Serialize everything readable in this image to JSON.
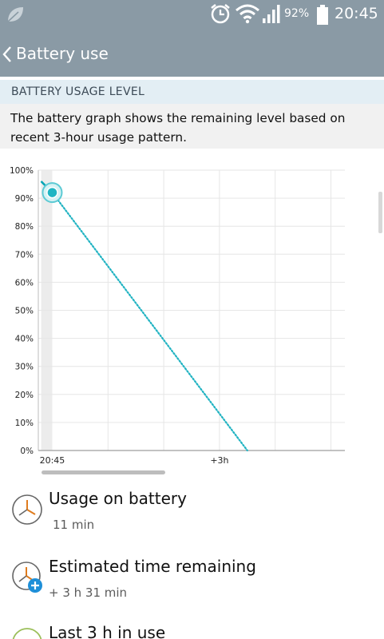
{
  "status_bar": {
    "icons": [
      "leaf-icon",
      "alarm-icon",
      "wifi-icon",
      "signal-icon",
      "battery-icon"
    ],
    "battery_percent": "92%",
    "time": "20:45",
    "battery_level": 0.92
  },
  "app_bar": {
    "back_icon": "chevron-left-icon",
    "title": "Battery use"
  },
  "section": {
    "header": "BATTERY USAGE LEVEL",
    "description": "The battery graph shows the remaining level based on recent 3-hour usage pattern."
  },
  "chart_data": {
    "type": "line",
    "y_ticks": [
      "100%",
      "90%",
      "80%",
      "70%",
      "60%",
      "50%",
      "40%",
      "30%",
      "20%",
      "10%",
      "0%"
    ],
    "x_ticks": [
      "20:45",
      "+3h"
    ],
    "ylim": [
      0,
      100
    ],
    "xlim_hours": [
      -0.25,
      5.25
    ],
    "grid": true,
    "series": [
      {
        "style": "solid",
        "color": "#00a3b4",
        "points": [
          {
            "x": -0.2,
            "y": 96
          },
          {
            "x": 0,
            "y": 92
          }
        ]
      },
      {
        "style": "dotted",
        "color": "#21b3c2",
        "points": [
          {
            "x": 0,
            "y": 92
          },
          {
            "x": 3.5,
            "y": 0
          }
        ]
      }
    ],
    "current_marker": {
      "x": 0,
      "y": 92
    }
  },
  "items": [
    {
      "icon": "clock-icon",
      "label": "Usage on battery",
      "value": "11 min"
    },
    {
      "icon": "clock-plus-icon",
      "label": "Estimated time remaining",
      "value": "+ 3 h 31 min"
    },
    {
      "icon": "clock-icon",
      "label": "Last 3 h in use",
      "value": ""
    }
  ],
  "colors": {
    "bar": "#8a9aa5",
    "section_header_bg": "#e3eef4",
    "description_bg": "#f1f1f1",
    "accent": "#1fb5c3",
    "icon_accent": "#1e8fd8"
  }
}
